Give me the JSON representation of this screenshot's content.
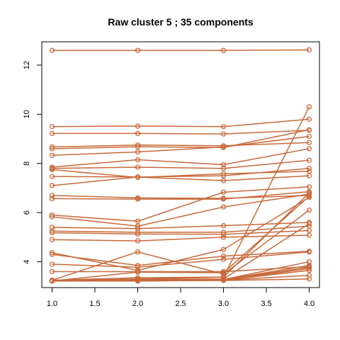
{
  "chart_data": {
    "type": "line",
    "title": "Raw cluster 5 ; 35 components",
    "xlabel": "",
    "ylabel": "",
    "x": [
      1.0,
      2.0,
      3.0,
      4.0
    ],
    "x_ticks": [
      "1.0",
      "1.5",
      "2.0",
      "2.5",
      "3.0",
      "3.5",
      "4.0"
    ],
    "x_tick_values": [
      1.0,
      1.5,
      2.0,
      2.5,
      3.0,
      3.5,
      4.0
    ],
    "y_ticks": [
      "4",
      "6",
      "8",
      "10",
      "12"
    ],
    "y_tick_values": [
      4,
      6,
      8,
      10,
      12
    ],
    "xlim": [
      0.88,
      4.12
    ],
    "ylim": [
      2.95,
      12.95
    ],
    "grid": false,
    "marker": "open-circle",
    "line_color": "#c8693a",
    "series": [
      {
        "values": [
          12.6,
          12.6,
          12.6,
          12.62
        ]
      },
      {
        "values": [
          9.5,
          9.52,
          9.5,
          9.8
        ]
      },
      {
        "values": [
          9.22,
          9.22,
          9.2,
          9.35
        ]
      },
      {
        "values": [
          8.67,
          8.75,
          8.72,
          8.85
        ]
      },
      {
        "values": [
          8.6,
          8.68,
          8.65,
          9.37
        ]
      },
      {
        "values": [
          8.33,
          8.47,
          8.67,
          9.1
        ]
      },
      {
        "values": [
          7.85,
          8.15,
          7.95,
          8.6
        ]
      },
      {
        "values": [
          7.8,
          7.85,
          7.8,
          8.13
        ]
      },
      {
        "values": [
          7.75,
          7.43,
          7.58,
          7.68
        ]
      },
      {
        "values": [
          7.47,
          7.45,
          7.3,
          7.5
        ]
      },
      {
        "values": [
          7.1,
          7.45,
          7.5,
          7.8
        ]
      },
      {
        "values": [
          6.7,
          6.6,
          6.58,
          6.7
        ]
      },
      {
        "values": [
          6.57,
          6.55,
          6.55,
          6.85
        ]
      },
      {
        "values": [
          5.9,
          5.65,
          6.83,
          7.05
        ]
      },
      {
        "values": [
          5.83,
          5.45,
          6.23,
          6.75
        ]
      },
      {
        "values": [
          5.4,
          5.35,
          5.47,
          5.6
        ]
      },
      {
        "values": [
          5.25,
          5.2,
          5.2,
          5.45
        ]
      },
      {
        "values": [
          5.18,
          5.13,
          5.12,
          5.27
        ]
      },
      {
        "values": [
          4.9,
          4.85,
          5.0,
          5.08
        ]
      },
      {
        "values": [
          4.37,
          3.65,
          4.5,
          6.62
        ]
      },
      {
        "values": [
          4.3,
          3.85,
          4.23,
          4.43
        ]
      },
      {
        "values": [
          3.9,
          3.78,
          4.1,
          4.4
        ]
      },
      {
        "values": [
          3.6,
          3.6,
          3.6,
          3.8
        ]
      },
      {
        "values": [
          3.25,
          4.4,
          3.5,
          6.1
        ]
      },
      {
        "values": [
          3.22,
          3.58,
          3.55,
          6.67
        ]
      },
      {
        "values": [
          3.25,
          3.35,
          3.38,
          6.8
        ]
      },
      {
        "values": [
          3.22,
          3.3,
          3.37,
          10.3
        ]
      },
      {
        "values": [
          3.25,
          3.28,
          3.3,
          5.55
        ]
      },
      {
        "values": [
          3.23,
          3.26,
          3.28,
          4.0
        ]
      },
      {
        "values": [
          3.22,
          3.25,
          3.27,
          3.85
        ]
      },
      {
        "values": [
          3.23,
          3.24,
          3.26,
          3.78
        ]
      },
      {
        "values": [
          3.22,
          3.23,
          3.26,
          3.72
        ]
      },
      {
        "values": [
          3.22,
          3.22,
          3.25,
          3.65
        ]
      },
      {
        "values": [
          3.22,
          3.22,
          3.25,
          3.45
        ]
      },
      {
        "values": [
          3.22,
          3.22,
          3.24,
          3.3
        ]
      }
    ]
  }
}
